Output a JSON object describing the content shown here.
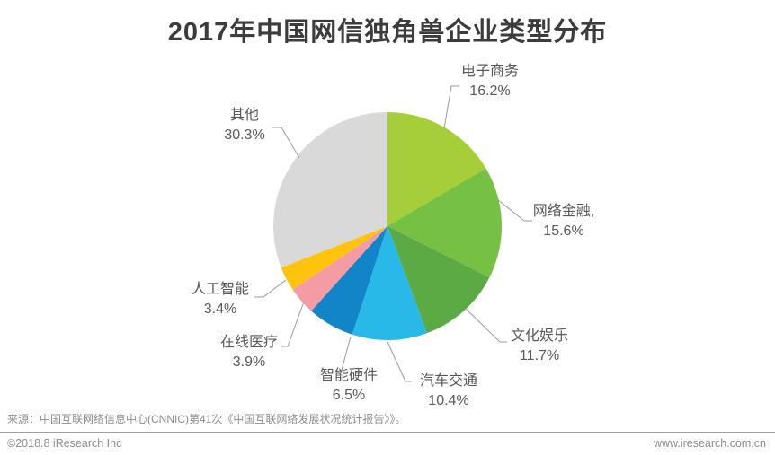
{
  "title": "2017年中国网信独角兽企业类型分布",
  "chart_data": {
    "type": "pie",
    "title": "2017年中国网信独角兽企业类型分布",
    "start_angle_deg": 0,
    "direction": "clockwise",
    "legend_position": "labels-with-leader-lines",
    "slices": [
      {
        "name": "电子商务",
        "value": 16.2,
        "value_label": "16.2%",
        "color": "#a6ce39"
      },
      {
        "name": "网络金融,",
        "value": 15.6,
        "value_label": "15.6%",
        "color": "#76c043"
      },
      {
        "name": "文化娱乐",
        "value": 11.7,
        "value_label": "11.7%",
        "color": "#5caa43"
      },
      {
        "name": "汽车交通",
        "value": 10.4,
        "value_label": "10.4%",
        "color": "#29b9e8"
      },
      {
        "name": "智能硬件",
        "value": 6.5,
        "value_label": "6.5%",
        "color": "#1185c8"
      },
      {
        "name": "在线医疗",
        "value": 3.9,
        "value_label": "3.9%",
        "color": "#f49ba3"
      },
      {
        "name": "人工智能",
        "value": 3.4,
        "value_label": "3.4%",
        "color": "#fec40d"
      },
      {
        "name": "其他",
        "value": 30.3,
        "value_label": "30.3%",
        "color": "#d9d9d9"
      }
    ]
  },
  "footer": {
    "source": "来源：中国互联网络信息中心(CNNIC)第41次《中国互联网络发展状况统计报告》》。",
    "copyright": "©2018.8 iResearch Inc",
    "website": "www.iresearch.com.cn"
  }
}
